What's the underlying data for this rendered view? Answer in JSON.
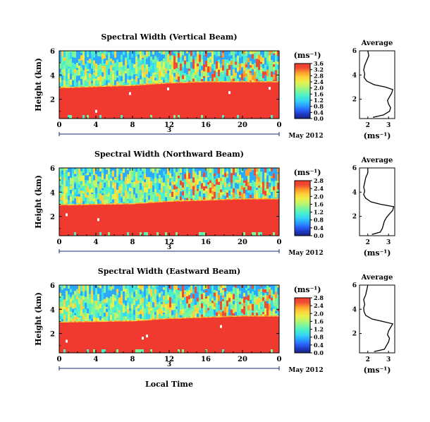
{
  "figure": {
    "shared_xlabel": "Local Time",
    "date_label": "May 2012",
    "day_label": "3"
  },
  "colors": {
    "scale": [
      "#1a237e",
      "#1e3cc8",
      "#2a6bff",
      "#2aa9ff",
      "#38d8f0",
      "#4df0c8",
      "#7ff59a",
      "#bdf56e",
      "#e8f04a",
      "#ffd23a",
      "#ff9e2c",
      "#f04c33",
      "#f03a30"
    ],
    "axis": "#000000",
    "date_axis": "#1a237e",
    "profile": "#000000"
  },
  "chart_data": [
    {
      "type": "heatmap",
      "title": "Spectral Width (Vertical Beam)",
      "ylabel": "Height (km)",
      "xlim": [
        0,
        24
      ],
      "ylim": [
        0.4,
        6
      ],
      "xticks": [
        "0",
        "4",
        "8",
        "12",
        "16",
        "20",
        "0"
      ],
      "yticks": [
        "2",
        "4",
        "6"
      ],
      "colorbar": {
        "unit": "(ms⁻¹)",
        "ticks": [
          "0.0",
          "0.4",
          "0.8",
          "1.2",
          "1.6",
          "2.0",
          "2.4",
          "2.8",
          "3.2",
          "3.6"
        ],
        "range": [
          0.0,
          3.6
        ]
      },
      "boundary": {
        "x": [
          0,
          8,
          12,
          16,
          20,
          24
        ],
        "height_km": [
          2.9,
          3.1,
          3.3,
          3.4,
          3.4,
          3.4
        ]
      },
      "profile": {
        "title": "Average",
        "xlabel": "(ms⁻¹)",
        "xticks": [
          "2",
          "3"
        ],
        "yticks": [
          "2",
          "4",
          "6"
        ],
        "xlim": [
          1.6,
          3.3
        ],
        "height_km": [
          0.5,
          0.7,
          1.0,
          1.3,
          1.6,
          1.9,
          2.2,
          2.5,
          2.8,
          3.0,
          3.2,
          3.5,
          3.8,
          4.1,
          4.4,
          4.8,
          5.2,
          5.6,
          6.0
        ],
        "width": [
          2.25,
          2.75,
          3.05,
          3.1,
          3.0,
          2.95,
          3.05,
          3.15,
          3.2,
          2.85,
          2.3,
          1.95,
          1.82,
          1.85,
          1.8,
          1.85,
          1.95,
          2.05,
          2.0
        ]
      }
    },
    {
      "type": "heatmap",
      "title": "Spectral Width (Northward Beam)",
      "ylabel": "Height (km)",
      "xlim": [
        0,
        24
      ],
      "ylim": [
        0.4,
        6
      ],
      "xticks": [
        "0",
        "4",
        "8",
        "12",
        "16",
        "20",
        "0"
      ],
      "yticks": [
        "2",
        "4",
        "6"
      ],
      "colorbar": {
        "unit": "(ms⁻¹)",
        "ticks": [
          "0.0",
          "0.4",
          "0.8",
          "1.2",
          "1.6",
          "2.0",
          "2.4",
          "2.8"
        ],
        "range": [
          0.0,
          2.8
        ]
      },
      "boundary": {
        "x": [
          0,
          8,
          12,
          16,
          20,
          24
        ],
        "height_km": [
          2.9,
          3.0,
          3.2,
          3.3,
          3.4,
          3.4
        ]
      },
      "profile": {
        "title": "Average",
        "xlabel": "(ms⁻¹)",
        "xticks": [
          "2",
          "3"
        ],
        "yticks": [
          "2",
          "4",
          "6"
        ],
        "xlim": [
          1.6,
          3.3
        ],
        "height_km": [
          0.5,
          0.7,
          1.0,
          1.3,
          1.6,
          1.9,
          2.2,
          2.5,
          2.8,
          3.0,
          3.2,
          3.5,
          3.8,
          4.1,
          4.4,
          4.8,
          5.2,
          5.6,
          6.0
        ],
        "width": [
          2.2,
          2.6,
          2.7,
          2.75,
          2.8,
          2.9,
          3.05,
          3.2,
          3.25,
          2.6,
          2.15,
          1.9,
          1.8,
          1.85,
          1.8,
          1.85,
          1.9,
          2.0,
          2.0
        ]
      }
    },
    {
      "type": "heatmap",
      "title": "Spectral Width (Eastward Beam)",
      "ylabel": "Height (km)",
      "xlim": [
        0,
        24
      ],
      "ylim": [
        0.4,
        6
      ],
      "xticks": [
        "0",
        "4",
        "8",
        "12",
        "16",
        "20",
        "0"
      ],
      "yticks": [
        "2",
        "4",
        "6"
      ],
      "colorbar": {
        "unit": "(ms⁻¹)",
        "ticks": [
          "0.0",
          "0.4",
          "0.8",
          "1.2",
          "1.6",
          "2.0",
          "2.4",
          "2.8"
        ],
        "range": [
          0.0,
          2.8
        ]
      },
      "boundary": {
        "x": [
          0,
          8,
          12,
          16,
          20,
          24
        ],
        "height_km": [
          2.9,
          3.0,
          3.2,
          3.3,
          3.4,
          3.4
        ]
      },
      "profile": {
        "title": "Average",
        "xlabel": "(ms⁻¹)",
        "xticks": [
          "2",
          "3"
        ],
        "yticks": [
          "2",
          "4",
          "6"
        ],
        "xlim": [
          1.6,
          3.3
        ],
        "height_km": [
          0.5,
          0.7,
          1.0,
          1.3,
          1.6,
          1.9,
          2.2,
          2.5,
          2.8,
          3.0,
          3.2,
          3.5,
          3.8,
          4.1,
          4.4,
          4.8,
          5.2,
          5.6,
          6.0
        ],
        "width": [
          2.3,
          2.8,
          2.9,
          3.0,
          3.05,
          2.95,
          3.0,
          3.1,
          3.2,
          2.7,
          2.2,
          1.9,
          1.82,
          1.8,
          1.85,
          1.8,
          1.9,
          1.95,
          2.0
        ]
      }
    }
  ]
}
